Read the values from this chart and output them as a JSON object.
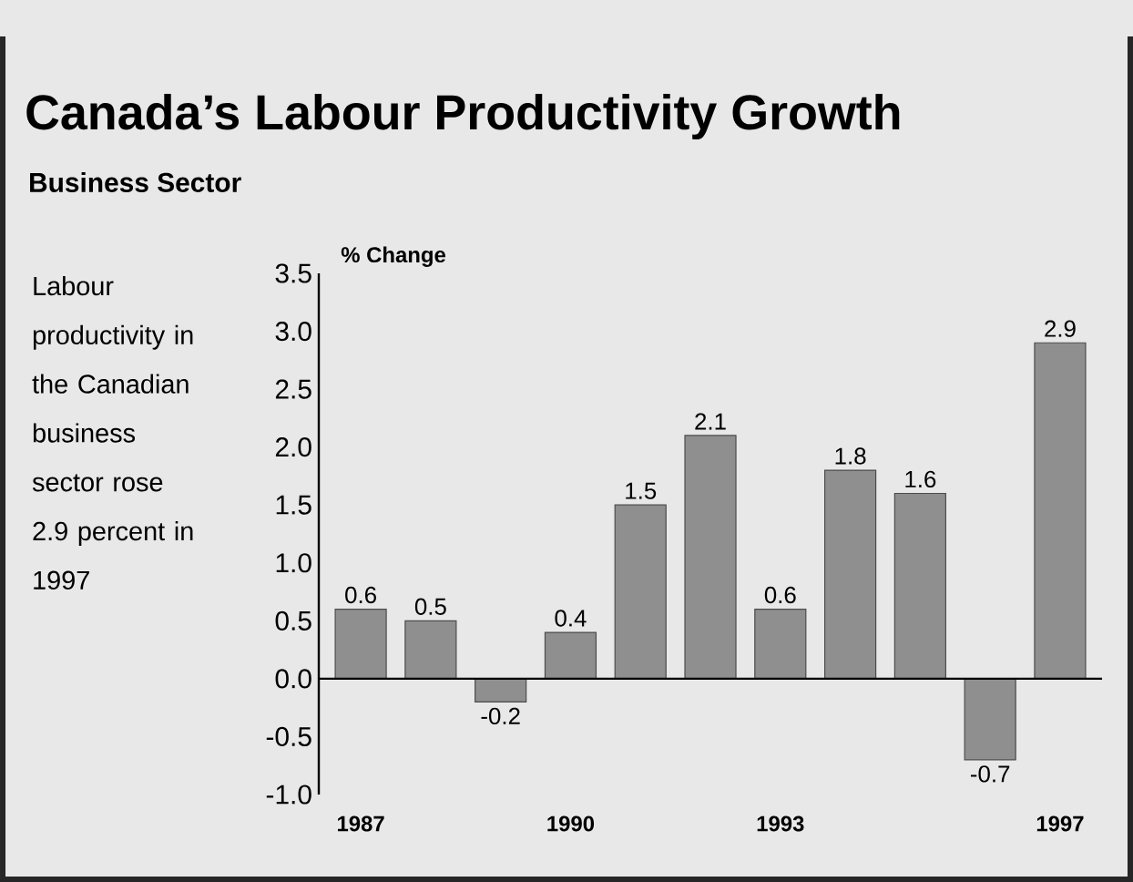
{
  "chart_data": {
    "type": "bar",
    "title": "Canada’s Labour Productivity Growth",
    "subtitle": "Business Sector",
    "ylabel": "% Change",
    "annotations": [
      "Labour productivity in the Canadian business sector rose 2.9 percent in 1997"
    ],
    "categories": [
      "1987",
      null,
      null,
      "1990",
      null,
      null,
      "1993",
      null,
      null,
      null,
      "1997"
    ],
    "values": [
      0.6,
      0.5,
      -0.2,
      0.4,
      1.5,
      2.1,
      0.6,
      1.8,
      1.6,
      -0.7,
      2.9
    ],
    "color": "#8f8f8f",
    "ylim": [
      -1.0,
      3.5
    ],
    "yticks": [
      {
        "value": -1.0,
        "label": "-1.0"
      },
      -0.5,
      {
        "value": 0.0,
        "label": "0.0"
      },
      0.5,
      {
        "value": 1.0,
        "label": "1.0"
      },
      1.5,
      {
        "value": 2.0,
        "label": "2.0"
      },
      2.5,
      {
        "value": 3.0,
        "label": "3.0"
      },
      3.5
    ],
    "data_labels": true
  }
}
